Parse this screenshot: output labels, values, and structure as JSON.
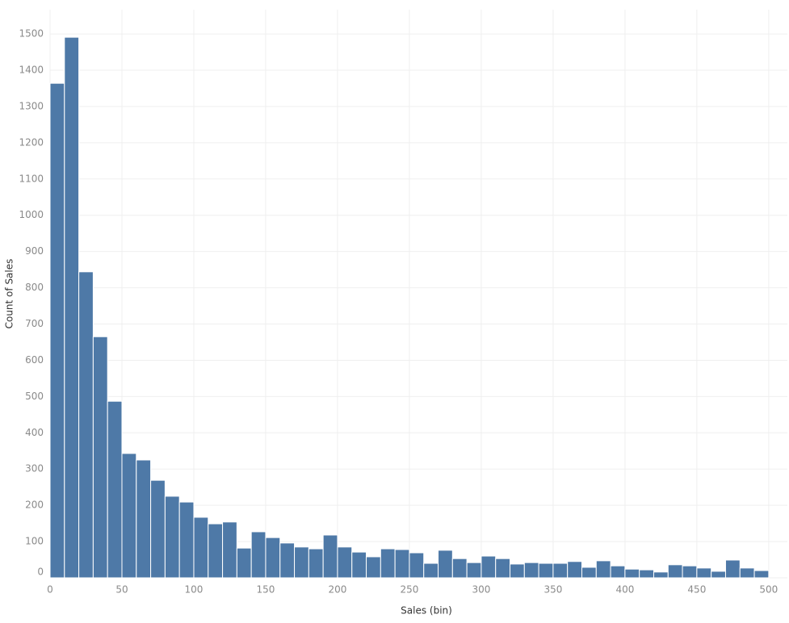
{
  "chart_data": {
    "type": "histogram",
    "x_label": "Sales (bin)",
    "y_label": "Count of Sales",
    "bins": [
      0,
      10,
      20,
      30,
      40,
      50,
      60,
      70,
      80,
      90,
      100,
      110,
      120,
      130,
      140,
      150,
      160,
      170,
      180,
      190,
      200,
      210,
      220,
      230,
      240,
      250,
      260,
      270,
      280,
      290,
      300,
      310,
      320,
      330,
      340,
      350,
      360,
      370,
      380,
      390,
      400,
      410,
      420,
      430,
      440,
      450,
      460,
      470,
      480,
      490,
      500
    ],
    "values": [
      1364,
      1491,
      844,
      665,
      487,
      343,
      325,
      269,
      225,
      209,
      167,
      149,
      154,
      82,
      127,
      111,
      96,
      85,
      80,
      118,
      85,
      71,
      58,
      80,
      78,
      69,
      40,
      76,
      53,
      42,
      60,
      53,
      38,
      42,
      40,
      40,
      45,
      29,
      47,
      33,
      24,
      22,
      16,
      36,
      33,
      27,
      18,
      49,
      27,
      20
    ],
    "color": "#4e79a7",
    "xlim": [
      0,
      513
    ],
    "xticks": [
      0,
      50,
      100,
      150,
      200,
      250,
      300,
      350,
      400,
      450,
      500
    ],
    "ylim": [
      0,
      1567
    ],
    "yticks": [
      0,
      100,
      200,
      300,
      400,
      500,
      600,
      700,
      800,
      900,
      1000,
      1100,
      1200,
      1300,
      1400,
      1500
    ],
    "grid": true
  }
}
